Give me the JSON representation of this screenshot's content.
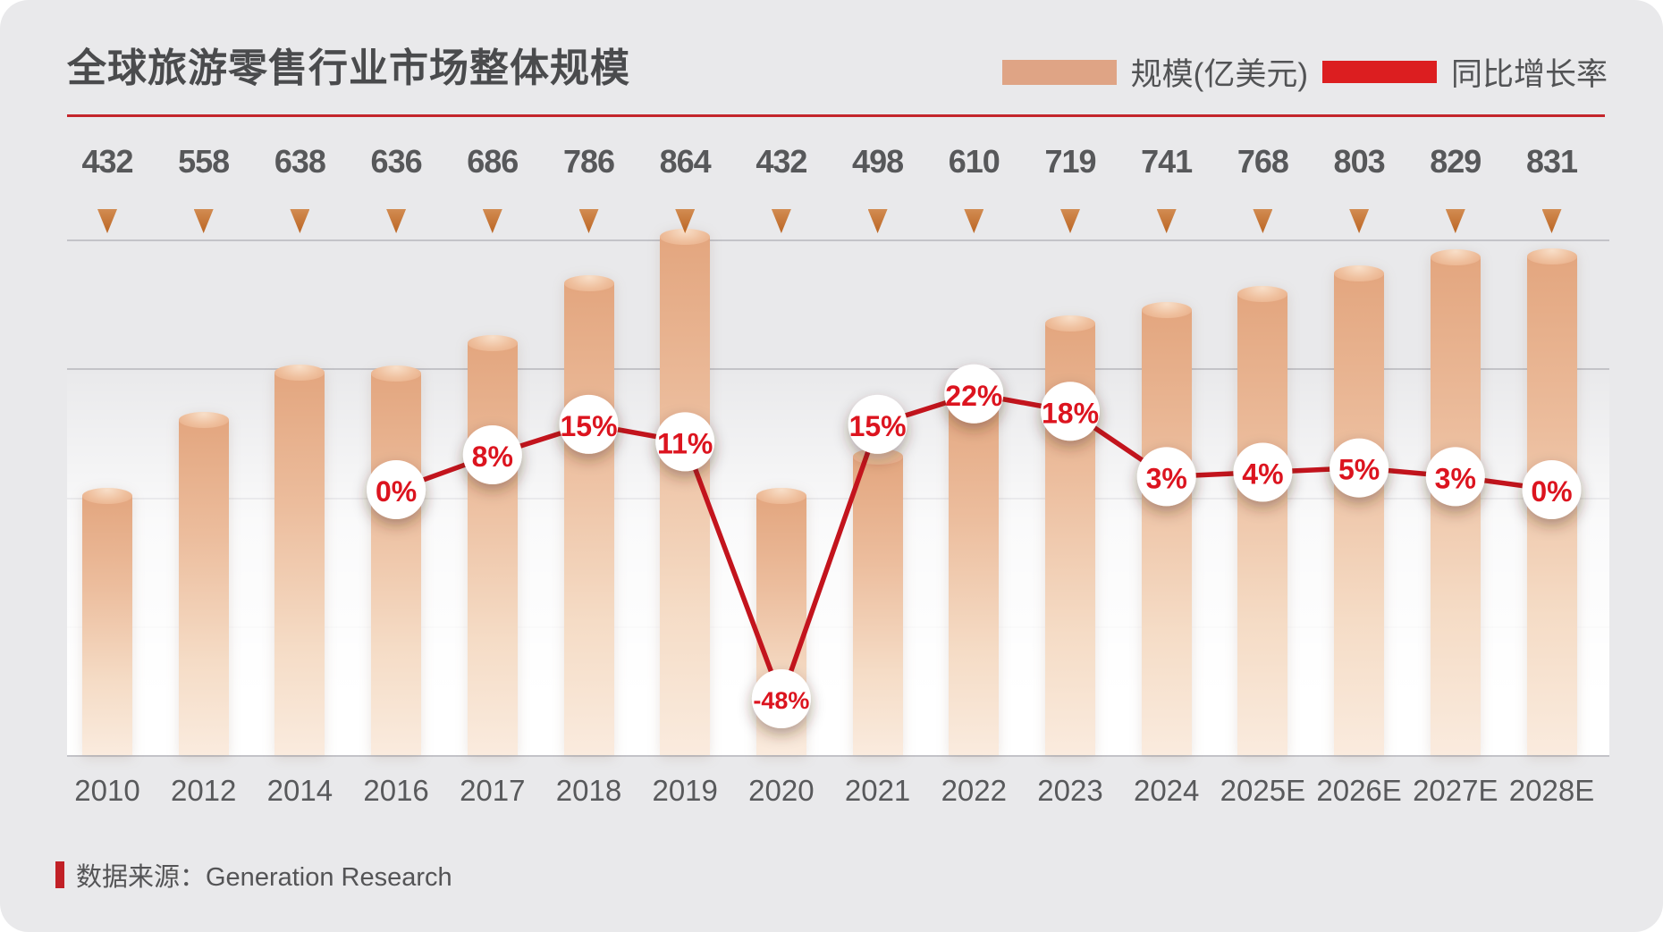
{
  "title": "全球旅游零售行业市场整体规模",
  "legend": {
    "items": [
      {
        "label": "规模(亿美元)",
        "type": "bar",
        "color": "#DFA485"
      },
      {
        "label": "同比增长率",
        "type": "line",
        "color": "#DC1E20"
      }
    ]
  },
  "source": {
    "label": "数据来源：Generation Research"
  },
  "colors": {
    "card_background": "#E9E9EB",
    "bar_top": "#E3A67F",
    "bar_bottom": "#FAEBDE",
    "growth_line": "#C3141D",
    "growth_text": "#DC141F",
    "title_text": "#4A4B4D",
    "axis_text": "#58595B",
    "rule_red": "#C4252B",
    "marker_orange": "#C8762F"
  },
  "chart_data": {
    "type": "bar",
    "subtype": "bar-line-combo",
    "title": "全球旅游零售行业市场整体规模",
    "categories": [
      "2010",
      "2012",
      "2014",
      "2016",
      "2017",
      "2018",
      "2019",
      "2020",
      "2021",
      "2022",
      "2023",
      "2024",
      "2025E",
      "2026E",
      "2027E",
      "2028E"
    ],
    "series": [
      {
        "name": "规模(亿美元)",
        "type": "bar",
        "unit": "亿美元",
        "values": [
          432,
          558,
          638,
          636,
          686,
          786,
          864,
          432,
          498,
          610,
          719,
          741,
          768,
          803,
          829,
          831
        ]
      },
      {
        "name": "同比增长率",
        "type": "line",
        "unit": "%",
        "values": [
          null,
          null,
          null,
          0,
          8,
          15,
          11,
          -48,
          15,
          22,
          18,
          3,
          4,
          5,
          3,
          0
        ],
        "labels": [
          null,
          null,
          null,
          "0%",
          "8%",
          "15%",
          "11%",
          "-48%",
          "15%",
          "22%",
          "18%",
          "3%",
          "4%",
          "5%",
          "3%",
          "0%"
        ]
      }
    ],
    "value_labels_position": "top",
    "grid": true,
    "gridline_count": 5,
    "legend_position": "top-right",
    "xlabel": "",
    "ylabel": ""
  }
}
